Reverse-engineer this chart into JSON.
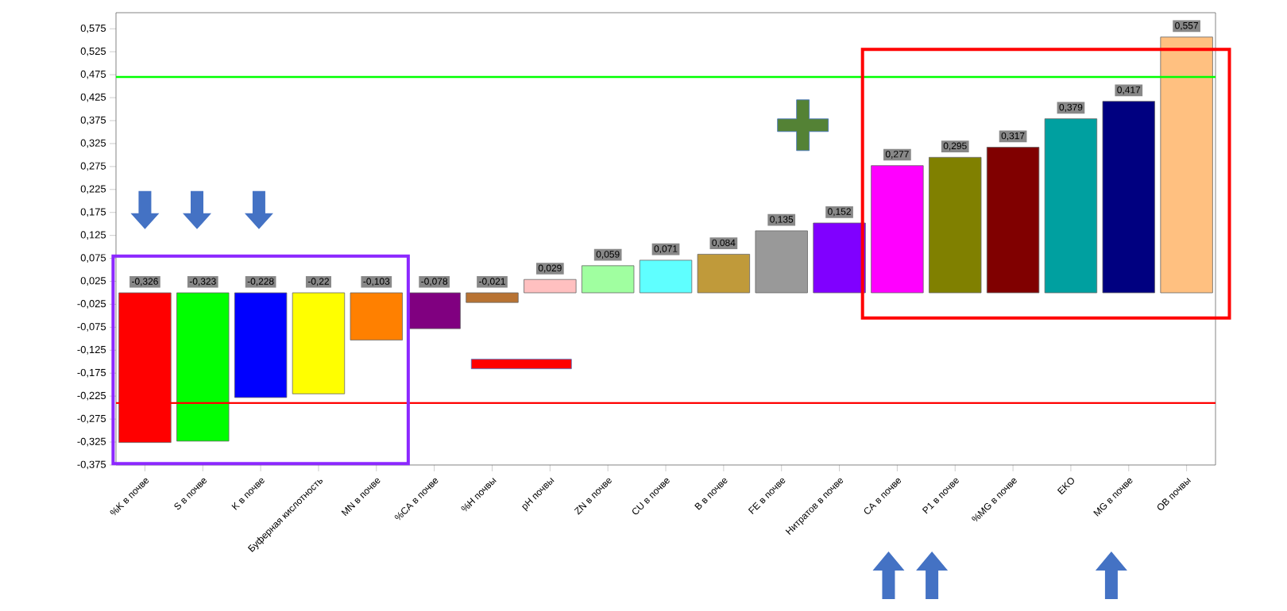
{
  "chart_data": {
    "type": "bar",
    "categories": [
      "%K в почве",
      "S в почве",
      "K в почве",
      "Буферная кислотность",
      "MN в почве",
      "%CA в почве",
      "%H почвы",
      "pH почвы",
      "ZN в почве",
      "CU в почве",
      "B в почве",
      "FE в почве",
      "Нитратов в почве",
      "CA в почве",
      "P1 в почве",
      "%MG в почве",
      "EKO",
      "MG в почве",
      "OB почвы"
    ],
    "values": [
      -0.326,
      -0.323,
      -0.228,
      -0.22,
      -0.103,
      -0.078,
      -0.021,
      0.029,
      0.059,
      0.071,
      0.084,
      0.135,
      0.152,
      0.277,
      0.295,
      0.317,
      0.379,
      0.417,
      0.557
    ],
    "value_labels": [
      "-0,326",
      "-0,323",
      "-0,228",
      "-0,22",
      "-0,103",
      "-0,078",
      "-0,021",
      "0,029",
      "0,059",
      "0,071",
      "0,084",
      "0,135",
      "0,152",
      "0,277",
      "0,295",
      "0,317",
      "0,379",
      "0,417",
      "0,557"
    ],
    "colors": [
      "#ff0000",
      "#00ff00",
      "#0000ff",
      "#ffff00",
      "#ff8000",
      "#800080",
      "#b87333",
      "#ffc0c0",
      "#a0ffa0",
      "#5fffff",
      "#c09a3a",
      "#999999",
      "#8000ff",
      "#ff00ff",
      "#808000",
      "#800000",
      "#00a0a0",
      "#000080",
      "#ffc080"
    ],
    "ylim": [
      -0.375,
      0.61
    ],
    "yticks": [
      {
        "value": -0.375,
        "label": "-0,375"
      },
      {
        "value": -0.325,
        "label": "-0,325"
      },
      {
        "value": -0.275,
        "label": "-0,275"
      },
      {
        "value": -0.225,
        "label": "-0,225"
      },
      {
        "value": -0.175,
        "label": "-0,175"
      },
      {
        "value": -0.125,
        "label": "-0,125"
      },
      {
        "value": -0.075,
        "label": "-0,075"
      },
      {
        "value": -0.025,
        "label": "-0,025"
      },
      {
        "value": 0.025,
        "label": "0,025"
      },
      {
        "value": 0.075,
        "label": "0,075"
      },
      {
        "value": 0.125,
        "label": "0,125"
      },
      {
        "value": 0.175,
        "label": "0,175"
      },
      {
        "value": 0.225,
        "label": "0,225"
      },
      {
        "value": 0.275,
        "label": "0,275"
      },
      {
        "value": 0.325,
        "label": "0,325"
      },
      {
        "value": 0.375,
        "label": "0,375"
      },
      {
        "value": 0.425,
        "label": "0,425"
      },
      {
        "value": 0.475,
        "label": "0,475"
      },
      {
        "value": 0.525,
        "label": "0,525"
      },
      {
        "value": 0.575,
        "label": "0,575"
      }
    ],
    "ref_lines": [
      {
        "axis": "y",
        "value": 0.47,
        "color": "#00ff00"
      },
      {
        "axis": "y",
        "value": -0.24,
        "color": "#ff0000"
      }
    ],
    "grid": false
  }
}
